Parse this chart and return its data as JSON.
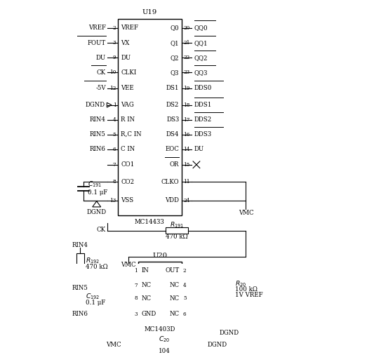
{
  "bg": "#ffffff",
  "figsize": [
    5.33,
    5.16
  ],
  "dpi": 100,
  "u19_left_pins": [
    [
      "VREF",
      "2",
      0.955,
      false
    ],
    [
      "FOUT",
      "3",
      0.878,
      true
    ],
    [
      "DU",
      "9",
      0.803,
      false
    ],
    [
      "CK",
      "10",
      0.728,
      true
    ],
    [
      "-5V",
      "12",
      0.648,
      true
    ],
    [
      "VAG",
      "1",
      0.562,
      false
    ],
    [
      "R IN",
      "4",
      0.487,
      false
    ],
    [
      "R,C IN",
      "5",
      0.412,
      false
    ],
    [
      "C IN",
      "6",
      0.337,
      false
    ],
    [
      "CO1",
      "7",
      0.258,
      false
    ],
    [
      "CO2",
      "8",
      0.17,
      false
    ],
    [
      "VSS",
      "13",
      0.075,
      false
    ]
  ],
  "u19_left_ext": [
    [
      "VREF",
      "2",
      0.955,
      false
    ],
    [
      "FOUT",
      "3",
      0.878,
      true
    ],
    [
      "DU",
      "9",
      0.803,
      false
    ],
    [
      "CK",
      "10",
      0.728,
      true
    ],
    [
      "-5V",
      "12",
      0.648,
      true
    ],
    [
      "DGND",
      "1",
      0.562,
      false
    ],
    [
      "RIN4",
      "4",
      0.487,
      false
    ],
    [
      "RIN5",
      "5",
      0.412,
      false
    ],
    [
      "RIN6",
      "6",
      0.337,
      false
    ],
    [
      "",
      "7",
      0.258,
      false
    ],
    [
      "",
      "8",
      0.17,
      false
    ],
    [
      "",
      "13",
      0.075,
      false
    ]
  ],
  "u19_right_pins": [
    [
      "Q0",
      "20",
      0.955,
      false,
      "QQ0",
      true
    ],
    [
      "Q1",
      "21",
      0.878,
      false,
      "QQ1",
      true
    ],
    [
      "Q2",
      "22",
      0.803,
      false,
      "QQ2",
      true
    ],
    [
      "Q3",
      "23",
      0.728,
      false,
      "QQ3",
      true
    ],
    [
      "DS1",
      "19",
      0.648,
      false,
      "DDS0",
      true
    ],
    [
      "DS2",
      "18",
      0.562,
      false,
      "DDS1",
      true
    ],
    [
      "DS3",
      "17",
      0.487,
      false,
      "DDS2",
      true
    ],
    [
      "DS4",
      "16",
      0.412,
      false,
      "DDS3",
      true
    ],
    [
      "EOC",
      "14",
      0.337,
      false,
      "DU",
      false
    ],
    [
      "OR",
      "15",
      0.258,
      true,
      "",
      false
    ],
    [
      "CLKO",
      "11",
      0.17,
      false,
      "",
      false
    ],
    [
      "VDD",
      "24",
      0.075,
      false,
      "",
      false
    ]
  ],
  "u20_left_pins": [
    [
      "IN",
      "1",
      0.86
    ],
    [
      "NC",
      "7",
      0.62
    ],
    [
      "NC",
      "8",
      0.41
    ],
    [
      "GND",
      "3",
      0.15
    ]
  ],
  "u20_right_pins": [
    [
      "OUT",
      "2",
      0.86
    ],
    [
      "NC",
      "4",
      0.62
    ],
    [
      "NC",
      "5",
      0.41
    ],
    [
      "NC",
      "6",
      0.15
    ]
  ]
}
